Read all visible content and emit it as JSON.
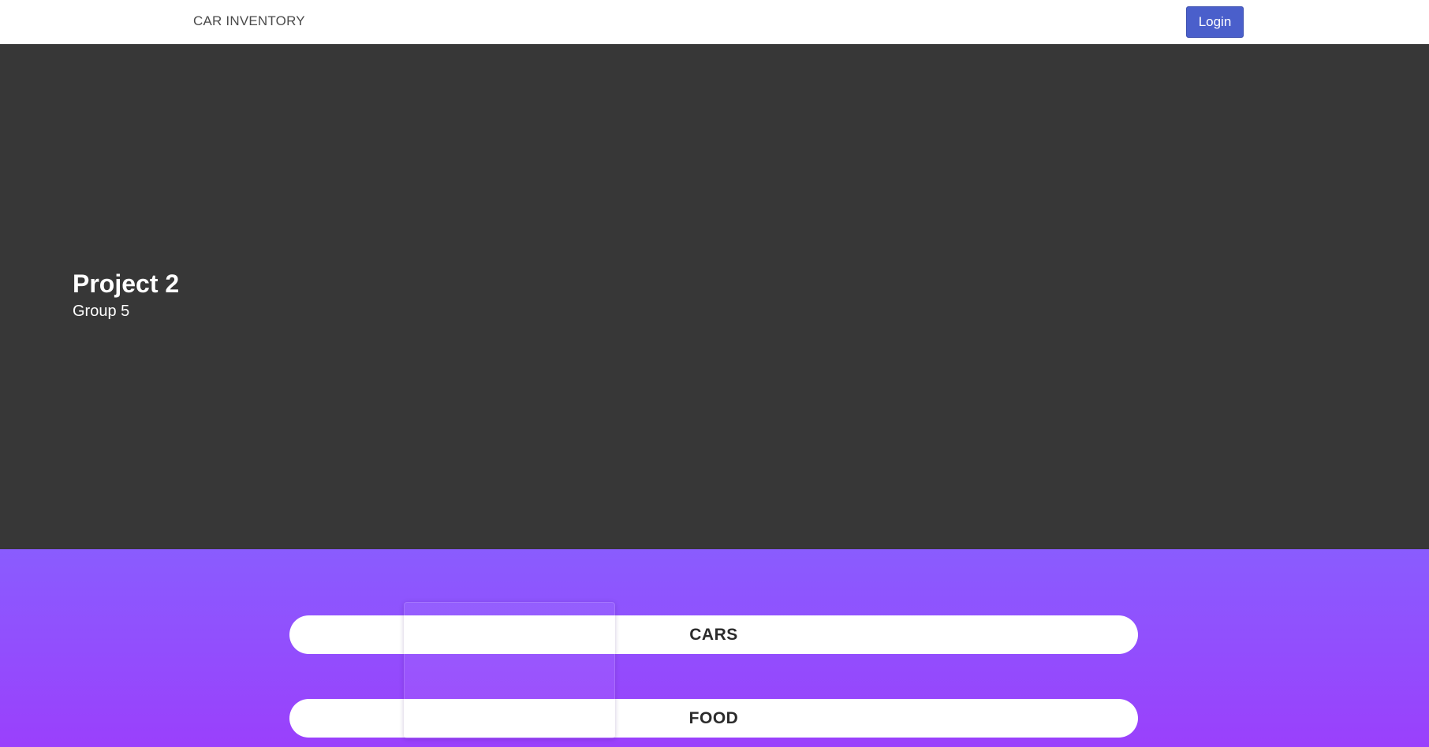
{
  "navbar": {
    "brand": "CAR INVENTORY",
    "login_label": "Login"
  },
  "hero": {
    "title": "Project 2",
    "subtitle": "Group 5"
  },
  "categories": [
    {
      "label": "CARS"
    },
    {
      "label": "FOOD"
    }
  ],
  "colors": {
    "navbar_bg": "#ffffff",
    "hero_bg": "#373737",
    "gradient_top": "#8a5cfe",
    "gradient_bottom": "#9a40fc",
    "login_button": "#4a5fcb"
  }
}
